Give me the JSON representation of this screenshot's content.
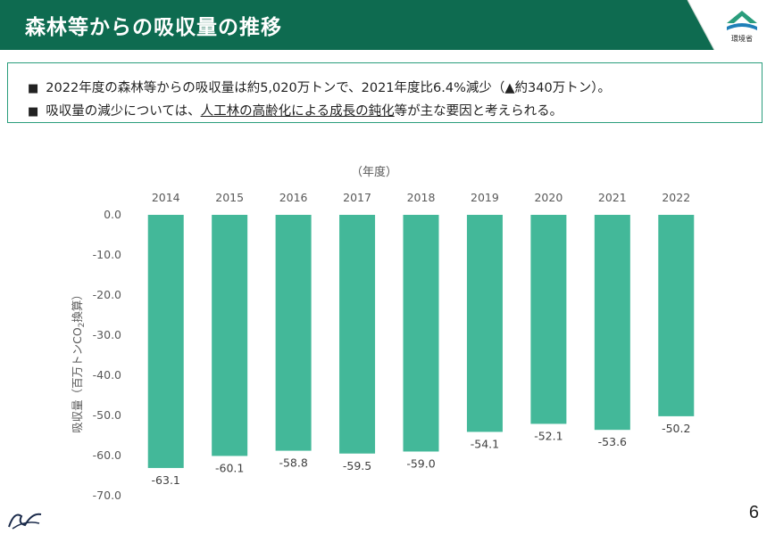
{
  "slide": {
    "title": "森林等からの吸収量の推移",
    "page_number": "6",
    "ministry_label": "環境省",
    "brand_color": "#0e6b50",
    "accent_color": "#2a9d7c"
  },
  "summary": {
    "bullet_marker": "■",
    "bullet1": "2022年度の森林等からの吸収量は約5,020万トンで、2021年度比6.4%減少（▲約340万トン）。",
    "bullet2_prefix": "吸収量の減少については、",
    "bullet2_underlined": "人工林の高齢化による成長の鈍化",
    "bullet2_suffix": "等が主な要因と考えられる。"
  },
  "chart_data": {
    "type": "bar",
    "xlabel": "（年度）",
    "ylabel_main": "吸収量（百万トンCO",
    "ylabel_sub": "2",
    "ylabel_tail": "換算）",
    "categories": [
      "2014",
      "2015",
      "2016",
      "2017",
      "2018",
      "2019",
      "2020",
      "2021",
      "2022"
    ],
    "values": [
      -63.1,
      -60.1,
      -58.8,
      -59.5,
      -59.0,
      -54.1,
      -52.1,
      -53.6,
      -50.2
    ],
    "value_labels": [
      "-63.1",
      "-60.1",
      "-58.8",
      "-59.5",
      "-59.0",
      "-54.1",
      "-52.1",
      "-53.6",
      "-50.2"
    ],
    "ylim": [
      -70,
      0
    ],
    "yticks": [
      0,
      -10,
      -20,
      -30,
      -40,
      -50,
      -60,
      -70
    ],
    "ytick_labels": [
      "0.0",
      "-10.0",
      "-20.0",
      "-30.0",
      "-40.0",
      "-50.0",
      "-60.0",
      "-70.0"
    ],
    "bar_color": "#43b899",
    "x_axis_position": "top",
    "grid": false
  }
}
